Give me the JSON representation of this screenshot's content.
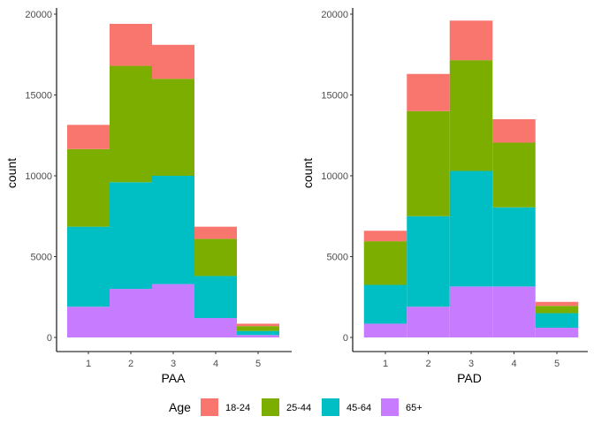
{
  "chart_data": {
    "type": "bar",
    "stacked": true,
    "grid": false,
    "legend": {
      "title": "Age",
      "placement": "bottom",
      "entries": [
        {
          "label": "18-24",
          "color": "#F8766D"
        },
        {
          "label": "25-44",
          "color": "#7CAE00"
        },
        {
          "label": "45-64",
          "color": "#00BFC4"
        },
        {
          "label": "65+",
          "color": "#C77CFF"
        }
      ]
    },
    "panels": [
      {
        "xlabel": "PAA",
        "ylabel": "count",
        "categories": [
          "1",
          "2",
          "3",
          "4",
          "5"
        ],
        "ylim": [
          0,
          20000
        ],
        "yticks": [
          0,
          5000,
          10000,
          15000,
          20000
        ],
        "series": [
          {
            "name": "65+",
            "values": [
              1900,
              3000,
              3300,
              1200,
              150
            ]
          },
          {
            "name": "45-64",
            "values": [
              4950,
              6600,
              6700,
              2600,
              250
            ]
          },
          {
            "name": "25-44",
            "values": [
              4800,
              7200,
              6000,
              2300,
              300
            ]
          },
          {
            "name": "18-24",
            "values": [
              1500,
              2600,
              2100,
              750,
              150
            ]
          }
        ]
      },
      {
        "xlabel": "PAD",
        "ylabel": "count",
        "categories": [
          "1",
          "2",
          "3",
          "4",
          "5"
        ],
        "ylim": [
          0,
          20000
        ],
        "yticks": [
          0,
          5000,
          10000,
          15000,
          20000
        ],
        "series": [
          {
            "name": "65+",
            "values": [
              850,
              1900,
              3150,
              3150,
              600
            ]
          },
          {
            "name": "45-64",
            "values": [
              2400,
              5600,
              7150,
              4900,
              900
            ]
          },
          {
            "name": "25-44",
            "values": [
              2700,
              6500,
              6850,
              4000,
              450
            ]
          },
          {
            "name": "18-24",
            "values": [
              650,
              2300,
              2450,
              1450,
              250
            ]
          }
        ]
      }
    ]
  }
}
